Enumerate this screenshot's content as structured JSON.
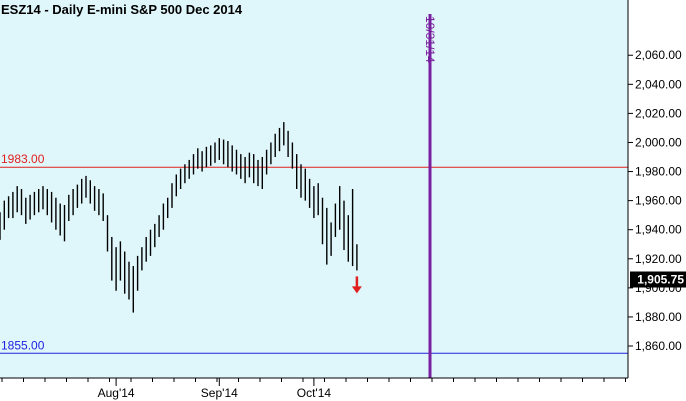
{
  "chart_data": {
    "type": "ohlc-bar",
    "title": "ESZ14 - Daily  E-mini S&P 500 Dec 2014",
    "ylim": [
      1838,
      2098
    ],
    "y_ticks": [
      1860,
      1880,
      1900,
      1920,
      1940,
      1960,
      1980,
      2000,
      2020,
      2040,
      2060
    ],
    "y_tick_labels": [
      "1,860.00",
      "1,880.00",
      "1,900.00",
      "1,920.00",
      "1,940.00",
      "1,960.00",
      "1,980.00",
      "2,000.00",
      "2,020.00",
      "2,040.00",
      "2,060.00"
    ],
    "x_tick_labels": [
      "Aug'14",
      "Sep'14",
      "Oct'14"
    ],
    "bars": [
      {
        "h": 1952,
        "l": 1933
      },
      {
        "h": 1960,
        "l": 1940
      },
      {
        "h": 1963,
        "l": 1948
      },
      {
        "h": 1966,
        "l": 1948
      },
      {
        "h": 1970,
        "l": 1952
      },
      {
        "h": 1968,
        "l": 1950
      },
      {
        "h": 1962,
        "l": 1944
      },
      {
        "h": 1964,
        "l": 1947
      },
      {
        "h": 1966,
        "l": 1950
      },
      {
        "h": 1968,
        "l": 1952
      },
      {
        "h": 1970,
        "l": 1954
      },
      {
        "h": 1968,
        "l": 1950
      },
      {
        "h": 1966,
        "l": 1945
      },
      {
        "h": 1962,
        "l": 1940
      },
      {
        "h": 1958,
        "l": 1936
      },
      {
        "h": 1957,
        "l": 1932
      },
      {
        "h": 1964,
        "l": 1946
      },
      {
        "h": 1968,
        "l": 1950
      },
      {
        "h": 1971,
        "l": 1955
      },
      {
        "h": 1975,
        "l": 1958
      },
      {
        "h": 1977,
        "l": 1962
      },
      {
        "h": 1974,
        "l": 1958
      },
      {
        "h": 1970,
        "l": 1953
      },
      {
        "h": 1968,
        "l": 1950
      },
      {
        "h": 1965,
        "l": 1946
      },
      {
        "h": 1950,
        "l": 1925
      },
      {
        "h": 1935,
        "l": 1905
      },
      {
        "h": 1928,
        "l": 1898
      },
      {
        "h": 1932,
        "l": 1905
      },
      {
        "h": 1925,
        "l": 1896
      },
      {
        "h": 1918,
        "l": 1892
      },
      {
        "h": 1915,
        "l": 1883
      },
      {
        "h": 1922,
        "l": 1898
      },
      {
        "h": 1928,
        "l": 1912
      },
      {
        "h": 1935,
        "l": 1918
      },
      {
        "h": 1940,
        "l": 1922
      },
      {
        "h": 1944,
        "l": 1928
      },
      {
        "h": 1950,
        "l": 1935
      },
      {
        "h": 1958,
        "l": 1940
      },
      {
        "h": 1962,
        "l": 1948
      },
      {
        "h": 1972,
        "l": 1955
      },
      {
        "h": 1978,
        "l": 1963
      },
      {
        "h": 1982,
        "l": 1968
      },
      {
        "h": 1985,
        "l": 1972
      },
      {
        "h": 1988,
        "l": 1975
      },
      {
        "h": 1992,
        "l": 1978
      },
      {
        "h": 1996,
        "l": 1982
      },
      {
        "h": 1994,
        "l": 1980
      },
      {
        "h": 1997,
        "l": 1983
      },
      {
        "h": 1998,
        "l": 1984
      },
      {
        "h": 2000,
        "l": 1986
      },
      {
        "h": 2003,
        "l": 1988
      },
      {
        "h": 2002,
        "l": 1985
      },
      {
        "h": 2001,
        "l": 1983
      },
      {
        "h": 1998,
        "l": 1980
      },
      {
        "h": 1995,
        "l": 1978
      },
      {
        "h": 1992,
        "l": 1975
      },
      {
        "h": 1990,
        "l": 1972
      },
      {
        "h": 1993,
        "l": 1976
      },
      {
        "h": 1992,
        "l": 1972
      },
      {
        "h": 1988,
        "l": 1970
      },
      {
        "h": 1990,
        "l": 1968
      },
      {
        "h": 1995,
        "l": 1978
      },
      {
        "h": 2000,
        "l": 1985
      },
      {
        "h": 2006,
        "l": 1990
      },
      {
        "h": 2010,
        "l": 1994
      },
      {
        "h": 2014,
        "l": 1998
      },
      {
        "h": 2008,
        "l": 1990
      },
      {
        "h": 2000,
        "l": 1982
      },
      {
        "h": 1992,
        "l": 1968
      },
      {
        "h": 1985,
        "l": 1962
      },
      {
        "h": 1982,
        "l": 1960
      },
      {
        "h": 1975,
        "l": 1955
      },
      {
        "h": 1970,
        "l": 1948
      },
      {
        "h": 1972,
        "l": 1950
      },
      {
        "h": 1962,
        "l": 1930
      },
      {
        "h": 1955,
        "l": 1916
      },
      {
        "h": 1945,
        "l": 1922
      },
      {
        "h": 1958,
        "l": 1935
      },
      {
        "h": 1970,
        "l": 1940
      },
      {
        "h": 1960,
        "l": 1926
      },
      {
        "h": 1950,
        "l": 1918
      },
      {
        "h": 1968,
        "l": 1915
      },
      {
        "h": 1930,
        "l": 1912
      }
    ],
    "horizontal_lines": [
      {
        "value": 1983,
        "label": "1983.00",
        "color": "#e0201e"
      },
      {
        "value": 1855,
        "label": "1855.00",
        "color": "#2020e0"
      }
    ],
    "vertical_marker": {
      "label": "10/31/14",
      "color": "#7a1fa0"
    },
    "last_price": {
      "value": 1905.75,
      "label": "1,905.75"
    },
    "colors": {
      "background": "#dff7fb",
      "bars": "#000000",
      "arrow": "#e0201e"
    }
  }
}
